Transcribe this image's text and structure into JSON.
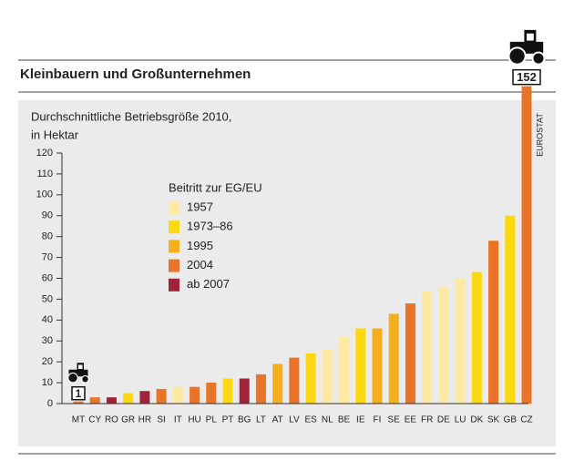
{
  "chart_data": {
    "type": "bar",
    "title": "Kleinbauern und Großunternehmen",
    "subtitle": [
      "Durchschnittliche Betriebsgröße 2010,",
      "in Hektar"
    ],
    "source": "EUROSTAT",
    "categories": [
      "MT",
      "CY",
      "RO",
      "GR",
      "HR",
      "SI",
      "IT",
      "HU",
      "PL",
      "PT",
      "BG",
      "LT",
      "AT",
      "LV",
      "ES",
      "NL",
      "BE",
      "IE",
      "FI",
      "SE",
      "EE",
      "FR",
      "DE",
      "LU",
      "DK",
      "SK",
      "GB",
      "CZ"
    ],
    "values": [
      1,
      3,
      3,
      5,
      6,
      7,
      8,
      8,
      10,
      12,
      12,
      14,
      19,
      22,
      24,
      26,
      32,
      36,
      36,
      43,
      48,
      54,
      56,
      60,
      63,
      78,
      90,
      152
    ],
    "value_labels": [
      "1",
      null,
      null,
      null,
      null,
      null,
      null,
      null,
      null,
      null,
      null,
      null,
      null,
      null,
      null,
      null,
      null,
      null,
      null,
      null,
      null,
      null,
      null,
      null,
      null,
      null,
      null,
      "152"
    ],
    "bar_groups": [
      3,
      3,
      4,
      1,
      4,
      3,
      0,
      3,
      3,
      1,
      4,
      3,
      2,
      3,
      1,
      0,
      0,
      1,
      2,
      2,
      3,
      0,
      0,
      0,
      1,
      3,
      1,
      3
    ],
    "legend": {
      "title": "Beitritt zur EG/EU",
      "items": [
        {
          "name": "1957",
          "color": "#fde8a4"
        },
        {
          "name": "1973–86",
          "color": "#fbd812"
        },
        {
          "name": "1995",
          "color": "#f5ae1c"
        },
        {
          "name": "2004",
          "color": "#e8742a"
        },
        {
          "name": "ab 2007",
          "color": "#a1233a"
        }
      ]
    },
    "ylim": [
      0,
      120
    ],
    "yticks": [
      0,
      10,
      20,
      30,
      40,
      50,
      60,
      70,
      80,
      90,
      100,
      110,
      120
    ],
    "grid": false
  }
}
